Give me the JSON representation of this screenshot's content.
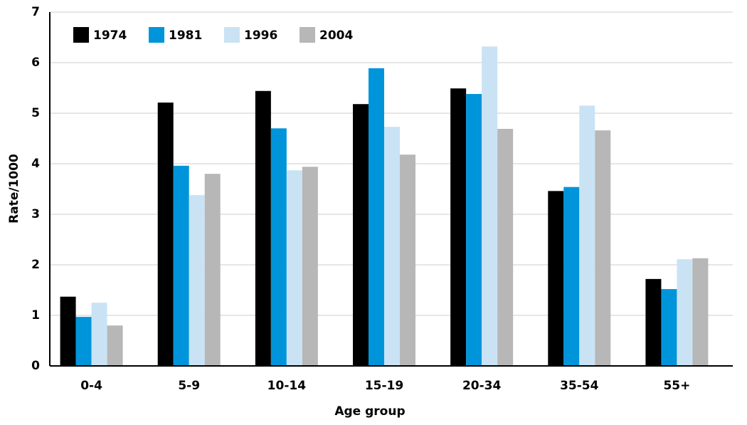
{
  "chart_data": {
    "type": "bar",
    "x_label": "Age group",
    "y_label": "Rate/1000",
    "categories": [
      "0-4",
      "5-9",
      "10-14",
      "15-19",
      "20-34",
      "35-54",
      "55+"
    ],
    "series": [
      {
        "name": "1974",
        "color": "#000000",
        "values": [
          1.37,
          5.21,
          5.44,
          5.18,
          5.49,
          3.46,
          1.72
        ]
      },
      {
        "name": "1981",
        "color": "#0095da",
        "values": [
          0.97,
          3.96,
          4.7,
          5.89,
          5.38,
          3.54,
          1.52
        ]
      },
      {
        "name": "1996",
        "color": "#c9e3f5",
        "values": [
          1.25,
          3.38,
          3.87,
          4.73,
          6.32,
          5.15,
          2.11
        ]
      },
      {
        "name": "2004",
        "color": "#b7b7b7",
        "values": [
          0.8,
          3.8,
          3.94,
          4.18,
          4.69,
          4.66,
          2.13
        ]
      }
    ],
    "ylim": [
      0,
      7
    ],
    "yticks": [
      0,
      1,
      2,
      3,
      4,
      5,
      6,
      7
    ],
    "grid": true,
    "legend": "top-left"
  }
}
